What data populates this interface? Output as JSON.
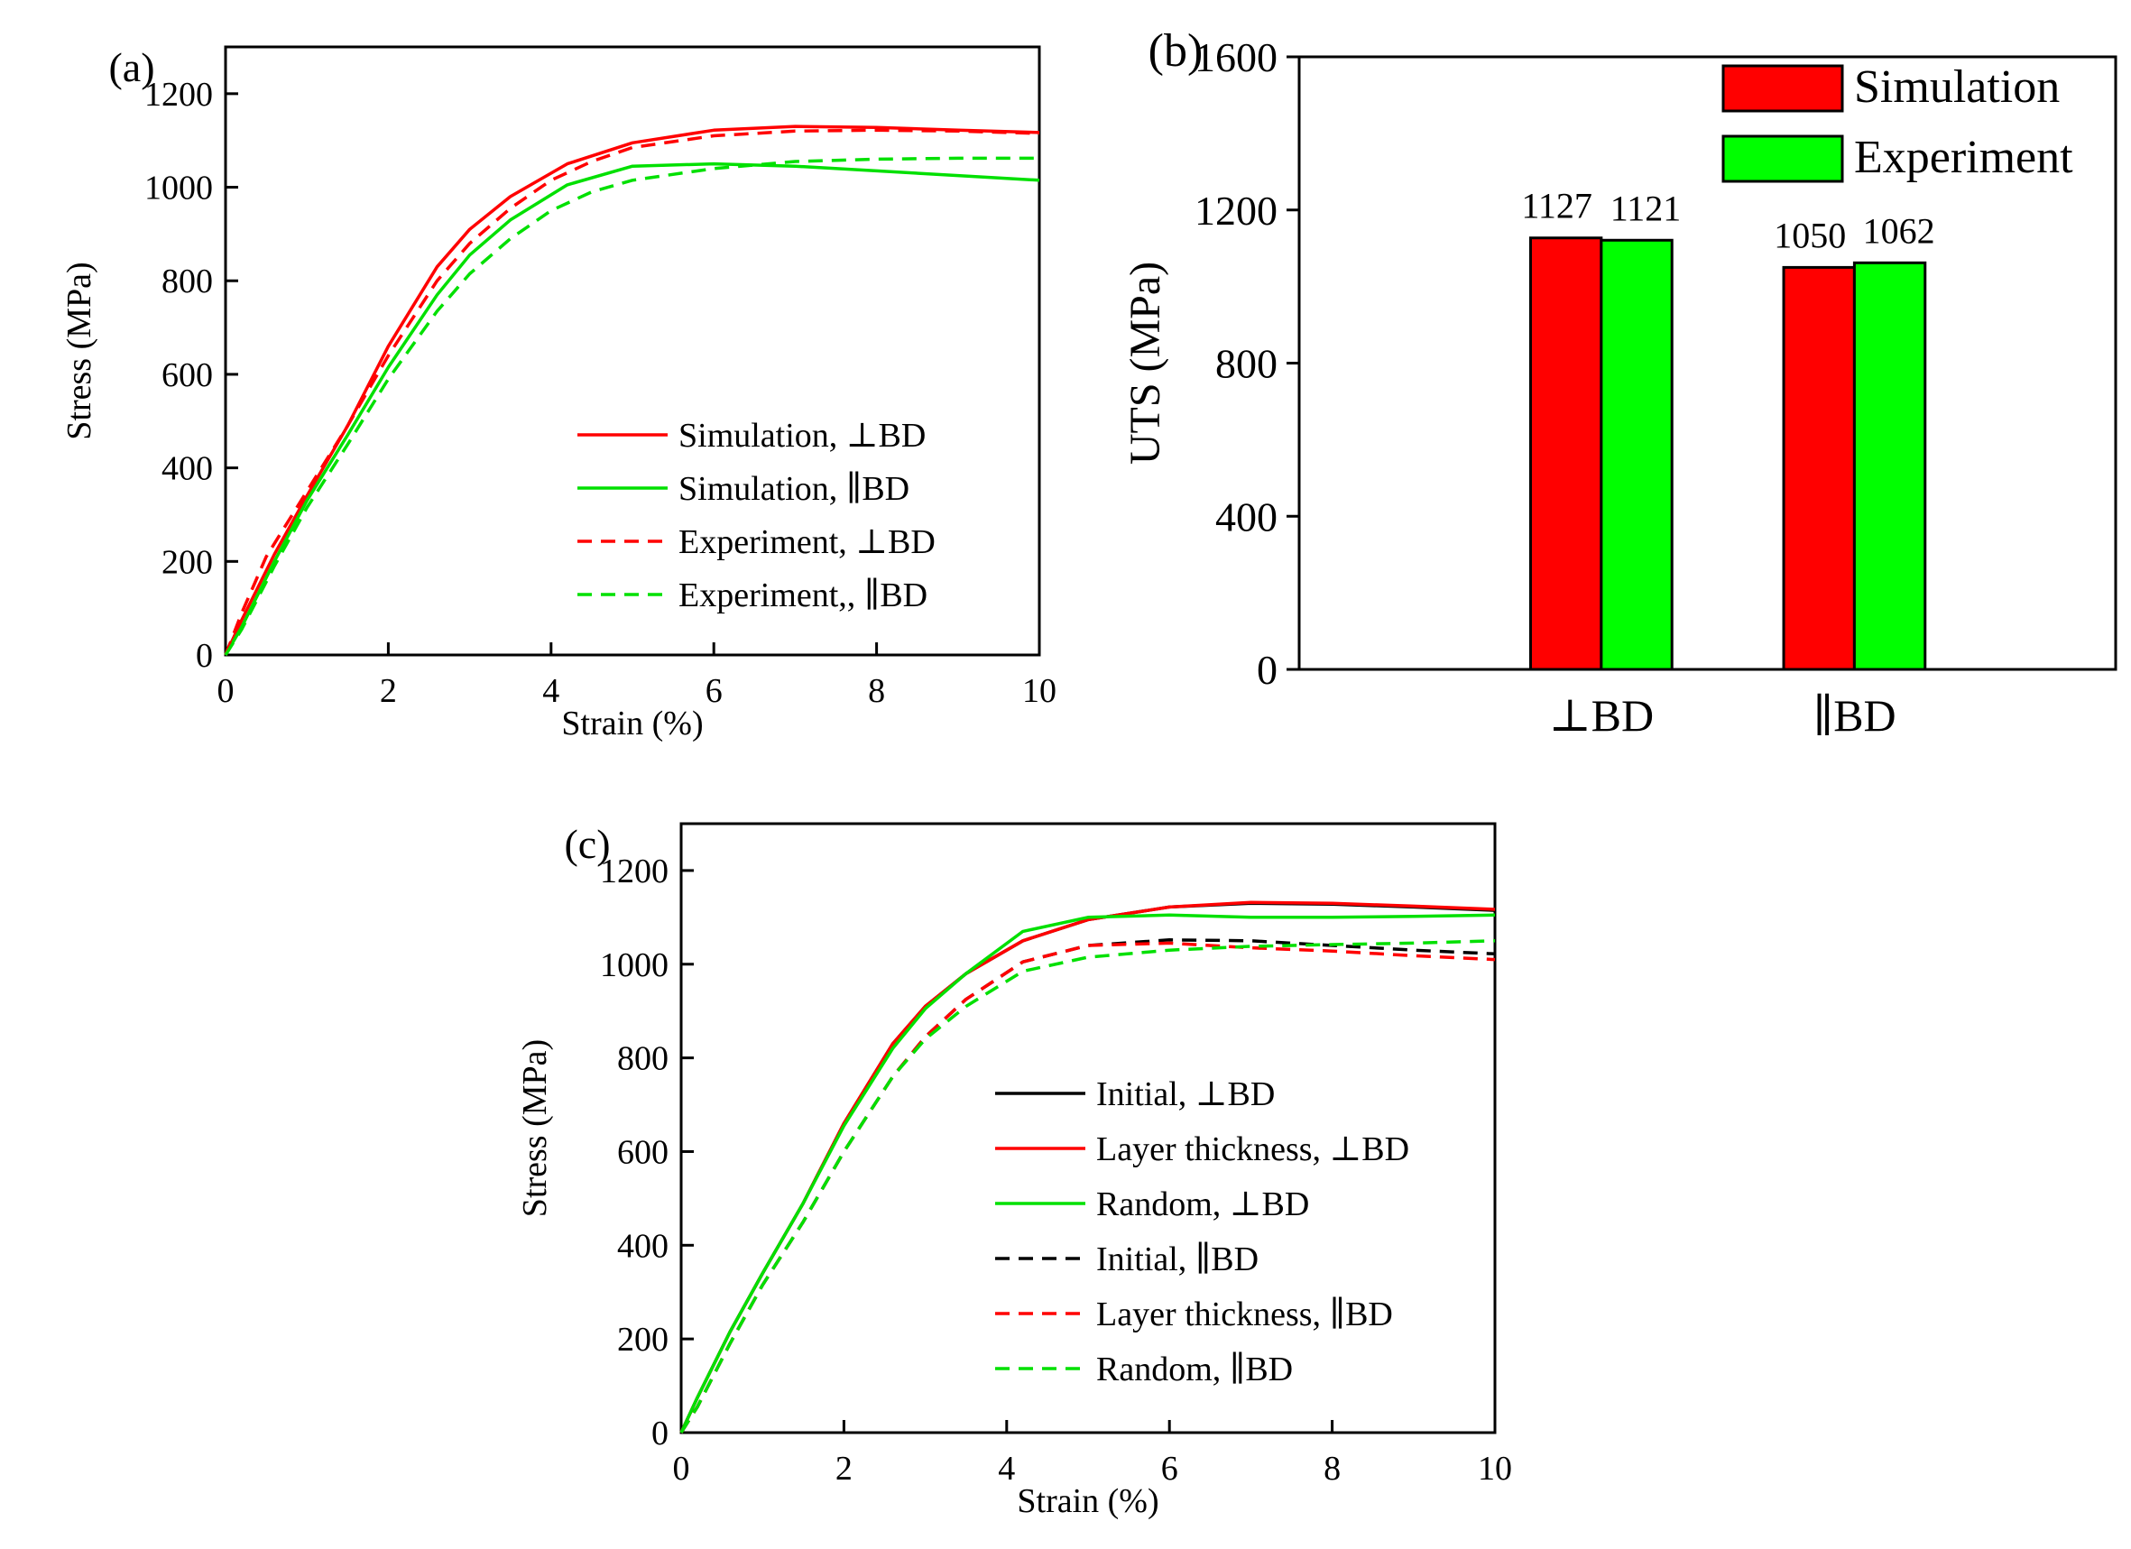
{
  "chart_data": [
    {
      "panel": "(a)",
      "type": "line",
      "xlabel": "Strain (%)",
      "ylabel": "Stress (MPa)",
      "xlim": [
        0,
        10
      ],
      "ylim": [
        0,
        1300
      ],
      "xticks": [
        0,
        2,
        4,
        6,
        8,
        10
      ],
      "yticks": [
        0,
        200,
        400,
        600,
        800,
        1000,
        1200
      ],
      "legend_position": "bottom-right",
      "series": [
        {
          "name": "Simulation, ⊥BD",
          "color": "#ff0000",
          "dash": "solid",
          "x": [
            0,
            0.2,
            0.6,
            1.0,
            1.5,
            2.0,
            2.6,
            3.0,
            3.5,
            4.2,
            5.0,
            6.0,
            7.0,
            8.0,
            9.0,
            10.0
          ],
          "y": [
            0,
            75,
            215,
            340,
            490,
            660,
            830,
            910,
            980,
            1050,
            1095,
            1122,
            1130,
            1128,
            1122,
            1117
          ]
        },
        {
          "name": "Simulation, ∥BD",
          "color": "#00e000",
          "dash": "solid",
          "x": [
            0,
            0.2,
            0.6,
            1.0,
            1.5,
            2.0,
            2.6,
            3.0,
            3.5,
            4.2,
            5.0,
            6.0,
            7.0,
            8.0,
            9.0,
            10.0
          ],
          "y": [
            0,
            60,
            200,
            330,
            470,
            615,
            770,
            855,
            930,
            1005,
            1045,
            1050,
            1045,
            1035,
            1025,
            1015
          ]
        },
        {
          "name": "Experiment, ⊥BD",
          "color": "#ff0000",
          "dash": "dashed",
          "x": [
            0,
            0.2,
            0.5,
            1.0,
            1.5,
            2.0,
            2.6,
            3.0,
            3.5,
            4.0,
            4.5,
            5.0,
            6.0,
            7.0,
            8.0,
            9.0,
            10.0
          ],
          "y": [
            0,
            90,
            210,
            350,
            490,
            640,
            800,
            880,
            955,
            1015,
            1055,
            1085,
            1110,
            1120,
            1122,
            1120,
            1115
          ]
        },
        {
          "name": "Experiment,, ∥BD",
          "color": "#00e000",
          "dash": "dashed",
          "x": [
            0,
            0.2,
            0.6,
            1.0,
            1.5,
            2.0,
            2.6,
            3.0,
            3.5,
            4.0,
            4.5,
            5.0,
            6.0,
            7.0,
            8.0,
            9.0,
            10.0
          ],
          "y": [
            0,
            55,
            190,
            315,
            450,
            590,
            735,
            815,
            890,
            950,
            990,
            1015,
            1040,
            1055,
            1060,
            1062,
            1062
          ]
        }
      ]
    },
    {
      "panel": "(b)",
      "type": "bar",
      "ylabel": "UTS (MPa)",
      "ylim": [
        0,
        1600
      ],
      "yticks": [
        0,
        400,
        800,
        1200,
        1600
      ],
      "categories": [
        "⊥BD",
        "∥BD"
      ],
      "legend_position": "top-right",
      "series": [
        {
          "name": "Simulation",
          "color": "#ff0000",
          "values": [
            1127,
            1050
          ],
          "labels": [
            "1127",
            "1050"
          ]
        },
        {
          "name": "Experiment",
          "color": "#00ff00",
          "values": [
            1121,
            1062
          ],
          "labels": [
            "1121",
            "1062"
          ]
        }
      ]
    },
    {
      "panel": "(c)",
      "type": "line",
      "xlabel": "Strain (%)",
      "ylabel": "Stress (MPa)",
      "xlim": [
        0,
        10
      ],
      "ylim": [
        0,
        1300
      ],
      "xticks": [
        0,
        2,
        4,
        6,
        8,
        10
      ],
      "yticks": [
        0,
        200,
        400,
        600,
        800,
        1000,
        1200
      ],
      "legend_position": "bottom-right",
      "series": [
        {
          "name": "Initial, ⊥BD",
          "color": "#000000",
          "dash": "solid",
          "x": [
            0,
            0.2,
            0.6,
            1.0,
            1.5,
            2.0,
            2.6,
            3.0,
            3.5,
            4.2,
            5.0,
            6.0,
            7.0,
            8.0,
            9.0,
            10.0
          ],
          "y": [
            0,
            75,
            215,
            340,
            490,
            660,
            830,
            910,
            980,
            1050,
            1095,
            1122,
            1130,
            1128,
            1122,
            1115
          ]
        },
        {
          "name": "Layer thickness, ⊥BD",
          "color": "#ff0000",
          "dash": "solid",
          "x": [
            0,
            0.2,
            0.6,
            1.0,
            1.5,
            2.0,
            2.6,
            3.0,
            3.5,
            4.2,
            5.0,
            6.0,
            7.0,
            8.0,
            9.0,
            10.0
          ],
          "y": [
            0,
            75,
            215,
            340,
            490,
            660,
            830,
            910,
            980,
            1050,
            1095,
            1122,
            1132,
            1130,
            1124,
            1117
          ]
        },
        {
          "name": "Random, ⊥BD",
          "color": "#00e000",
          "dash": "solid",
          "x": [
            0,
            0.2,
            0.6,
            1.0,
            1.5,
            2.0,
            2.6,
            3.0,
            3.5,
            4.2,
            5.0,
            6.0,
            7.0,
            8.0,
            9.0,
            10.0
          ],
          "y": [
            0,
            75,
            215,
            340,
            490,
            655,
            820,
            905,
            980,
            1070,
            1100,
            1105,
            1100,
            1100,
            1102,
            1105
          ]
        },
        {
          "name": "Initial, ∥BD",
          "color": "#000000",
          "dash": "dashed",
          "x": [
            0,
            0.2,
            0.6,
            1.0,
            1.5,
            2.0,
            2.6,
            3.0,
            3.5,
            4.2,
            5.0,
            6.0,
            7.0,
            8.0,
            9.0,
            10.0
          ],
          "y": [
            0,
            55,
            190,
            315,
            450,
            600,
            760,
            845,
            925,
            1005,
            1040,
            1052,
            1050,
            1040,
            1030,
            1022
          ]
        },
        {
          "name": "Layer thickness, ∥BD",
          "color": "#ff0000",
          "dash": "dashed",
          "x": [
            0,
            0.2,
            0.6,
            1.0,
            1.5,
            2.0,
            2.6,
            3.0,
            3.5,
            4.2,
            5.0,
            6.0,
            7.0,
            8.0,
            9.0,
            10.0
          ],
          "y": [
            0,
            55,
            190,
            315,
            450,
            600,
            760,
            845,
            925,
            1005,
            1040,
            1045,
            1035,
            1028,
            1018,
            1010
          ]
        },
        {
          "name": "Random, ∥BD",
          "color": "#00e000",
          "dash": "dashed",
          "x": [
            0,
            0.2,
            0.6,
            1.0,
            1.5,
            2.0,
            2.6,
            3.0,
            3.5,
            4.2,
            5.0,
            6.0,
            7.0,
            8.0,
            9.0,
            10.0
          ],
          "y": [
            0,
            55,
            190,
            315,
            450,
            600,
            760,
            840,
            910,
            985,
            1015,
            1030,
            1038,
            1042,
            1045,
            1050
          ]
        }
      ]
    }
  ]
}
